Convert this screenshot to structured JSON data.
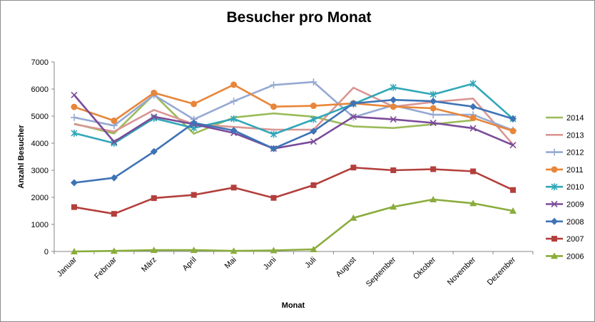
{
  "chart_data": {
    "type": "line",
    "title": "Besucher pro Monat",
    "xlabel": "Monat",
    "ylabel": "Anzahl Besucher",
    "ylim": [
      0,
      7000
    ],
    "yticks": [
      "0",
      "1000",
      "2000",
      "3000",
      "4000",
      "5000",
      "6000",
      "7000"
    ],
    "grid": false,
    "legend_position": "right",
    "categories": [
      "Januar",
      "Februar",
      "März",
      "April",
      "Mai",
      "Juni",
      "Juli",
      "August",
      "September",
      "Oktober",
      "November",
      "Dezember"
    ],
    "series": [
      {
        "name": "2014",
        "color": "#9bbb59",
        "marker": "none",
        "values": [
          4720,
          4360,
          5800,
          4350,
          4950,
          5100,
          4980,
          4620,
          4560,
          4700,
          4850,
          null
        ]
      },
      {
        "name": "2013",
        "color": "#d99694",
        "marker": "none",
        "values": [
          4700,
          4430,
          5230,
          4700,
          4600,
          4500,
          4500,
          6050,
          5350,
          5520,
          5650,
          3950
        ]
      },
      {
        "name": "2012",
        "color": "#95a9d3",
        "marker": "plus",
        "values": [
          4950,
          4650,
          5780,
          4880,
          5550,
          6150,
          6260,
          4960,
          5400,
          5050,
          5050,
          4480
        ]
      },
      {
        "name": "2011",
        "color": "#e8863a",
        "marker": "circle",
        "values": [
          5340,
          4830,
          5860,
          5450,
          6160,
          5350,
          5380,
          5470,
          5350,
          5290,
          4930,
          4450
        ]
      },
      {
        "name": "2010",
        "color": "#31a7b8",
        "marker": "star",
        "values": [
          4370,
          4000,
          4920,
          4560,
          4900,
          4330,
          4880,
          5450,
          6060,
          5800,
          6200,
          4900
        ]
      },
      {
        "name": "2009",
        "color": "#7a4b99",
        "marker": "x",
        "values": [
          5780,
          4050,
          4980,
          4700,
          4380,
          3800,
          4060,
          4980,
          4880,
          4750,
          4550,
          3930
        ]
      },
      {
        "name": "2008",
        "color": "#3e73b6",
        "marker": "diamond",
        "values": [
          2540,
          2720,
          3690,
          4750,
          4470,
          3800,
          4440,
          5470,
          5600,
          5550,
          5350,
          4900
        ]
      },
      {
        "name": "2007",
        "color": "#b33f3c",
        "marker": "square",
        "values": [
          1640,
          1390,
          1970,
          2090,
          2360,
          1980,
          2450,
          3100,
          3000,
          3040,
          2960,
          2270
        ]
      },
      {
        "name": "2006",
        "color": "#8aac3c",
        "marker": "triangle",
        "values": [
          0,
          20,
          50,
          50,
          20,
          40,
          80,
          1240,
          1650,
          1920,
          1780,
          1500
        ]
      }
    ]
  }
}
